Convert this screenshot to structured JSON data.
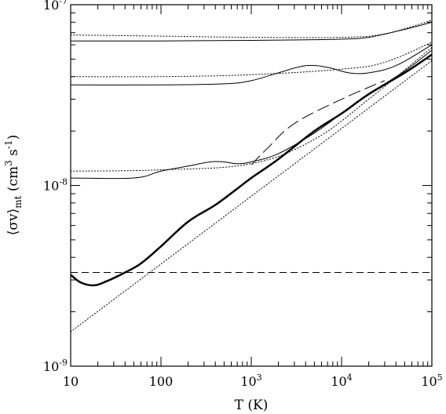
{
  "chart_data": {
    "type": "line",
    "title": "",
    "xlabel": "T (K)",
    "ylabel_main": "⟨σv⟩",
    "ylabel_sub": "mt",
    "ylabel_units": "(cm",
    "ylabel_units_exp1": "3",
    "ylabel_units_mid": " s",
    "ylabel_units_exp2": "-1",
    "ylabel_units_end": ")",
    "xscale": "log",
    "yscale": "log",
    "xlim": [
      10,
      100000
    ],
    "ylim": [
      1e-09,
      1e-07
    ],
    "grid": false,
    "legend": "none",
    "x_ticks": [
      {
        "value": 10,
        "label": "10",
        "sup": ""
      },
      {
        "value": 100,
        "label": "100",
        "sup": ""
      },
      {
        "value": 1000,
        "label": "10",
        "sup": "3"
      },
      {
        "value": 10000,
        "label": "10",
        "sup": "4"
      },
      {
        "value": 100000,
        "label": "10",
        "sup": "5"
      }
    ],
    "y_ticks": [
      {
        "value": 1e-09,
        "label": "10",
        "sup": "-9"
      },
      {
        "value": 1e-08,
        "label": "10",
        "sup": "-8"
      },
      {
        "value": 1e-07,
        "label": "10",
        "sup": "-7"
      }
    ],
    "series": [
      {
        "style": "solid",
        "width": 1,
        "points": [
          [
            10,
            6.3e-08
          ],
          [
            100,
            6.3e-08
          ],
          [
            1000,
            6.35e-08
          ],
          [
            5000,
            6.4e-08
          ],
          [
            10000,
            6.45e-08
          ],
          [
            20000,
            6.6e-08
          ],
          [
            50000,
            7.3e-08
          ],
          [
            100000,
            8e-08
          ]
        ]
      },
      {
        "style": "dotted",
        "width": 1,
        "points": [
          [
            10,
            6.8e-08
          ],
          [
            100,
            6.7e-08
          ],
          [
            1000,
            6.6e-08
          ],
          [
            10000,
            6.6e-08
          ],
          [
            30000,
            6.9e-08
          ],
          [
            100000,
            8.2e-08
          ]
        ]
      },
      {
        "style": "solid",
        "width": 1,
        "points": [
          [
            10,
            3.6e-08
          ],
          [
            100,
            3.6e-08
          ],
          [
            500,
            3.65e-08
          ],
          [
            1000,
            3.8e-08
          ],
          [
            2000,
            4.2e-08
          ],
          [
            4000,
            4.6e-08
          ],
          [
            7000,
            4.5e-08
          ],
          [
            12000,
            4.2e-08
          ],
          [
            20000,
            4.2e-08
          ],
          [
            40000,
            4.6e-08
          ],
          [
            100000,
            6e-08
          ]
        ]
      },
      {
        "style": "dotted",
        "width": 1,
        "points": [
          [
            10,
            4e-08
          ],
          [
            100,
            4e-08
          ],
          [
            1000,
            4.1e-08
          ],
          [
            10000,
            4.4e-08
          ],
          [
            30000,
            4.8e-08
          ],
          [
            100000,
            6.2e-08
          ]
        ]
      },
      {
        "style": "solid",
        "width": 1,
        "points": [
          [
            10,
            1.1e-08
          ],
          [
            50,
            1.1e-08
          ],
          [
            100,
            1.2e-08
          ],
          [
            200,
            1.28e-08
          ],
          [
            350,
            1.35e-08
          ],
          [
            500,
            1.35e-08
          ],
          [
            700,
            1.32e-08
          ],
          [
            1000,
            1.35e-08
          ],
          [
            2000,
            1.5e-08
          ],
          [
            5000,
            1.95e-08
          ],
          [
            10000,
            2.5e-08
          ],
          [
            20000,
            3.2e-08
          ],
          [
            50000,
            4.3e-08
          ],
          [
            100000,
            5.6e-08
          ]
        ]
      },
      {
        "style": "dotted",
        "width": 1,
        "points": [
          [
            10,
            1.2e-08
          ],
          [
            100,
            1.22e-08
          ],
          [
            1000,
            1.32e-08
          ],
          [
            5000,
            1.8e-08
          ],
          [
            20000,
            3e-08
          ],
          [
            100000,
            5.8e-08
          ]
        ]
      },
      {
        "style": "solid",
        "width": 2.5,
        "points": [
          [
            10,
            3.2e-09
          ],
          [
            13,
            2.9e-09
          ],
          [
            18,
            2.8e-09
          ],
          [
            25,
            2.95e-09
          ],
          [
            40,
            3.3e-09
          ],
          [
            60,
            3.7e-09
          ],
          [
            100,
            4.6e-09
          ],
          [
            200,
            6.3e-09
          ],
          [
            400,
            7.8e-09
          ],
          [
            700,
            9.6e-09
          ],
          [
            1000,
            1.1e-08
          ],
          [
            2000,
            1.4e-08
          ],
          [
            5000,
            2e-08
          ],
          [
            10000,
            2.5e-08
          ],
          [
            20000,
            3.2e-08
          ],
          [
            50000,
            4.2e-08
          ],
          [
            100000,
            5.3e-08
          ]
        ]
      },
      {
        "style": "dotted",
        "width": 1,
        "points": [
          [
            10,
            1.55e-09
          ],
          [
            100000,
            4.9e-08
          ]
        ]
      },
      {
        "style": "dashed",
        "width": 1,
        "points": [
          [
            10,
            3.3e-09
          ],
          [
            100000,
            3.3e-09
          ]
        ]
      },
      {
        "style": "longdash",
        "width": 1,
        "points": [
          [
            1000,
            1.3e-08
          ],
          [
            1500,
            1.6e-08
          ],
          [
            3000,
            2.2e-08
          ],
          [
            10000,
            3e-08
          ],
          [
            30000,
            3.8e-08
          ]
        ]
      }
    ]
  }
}
